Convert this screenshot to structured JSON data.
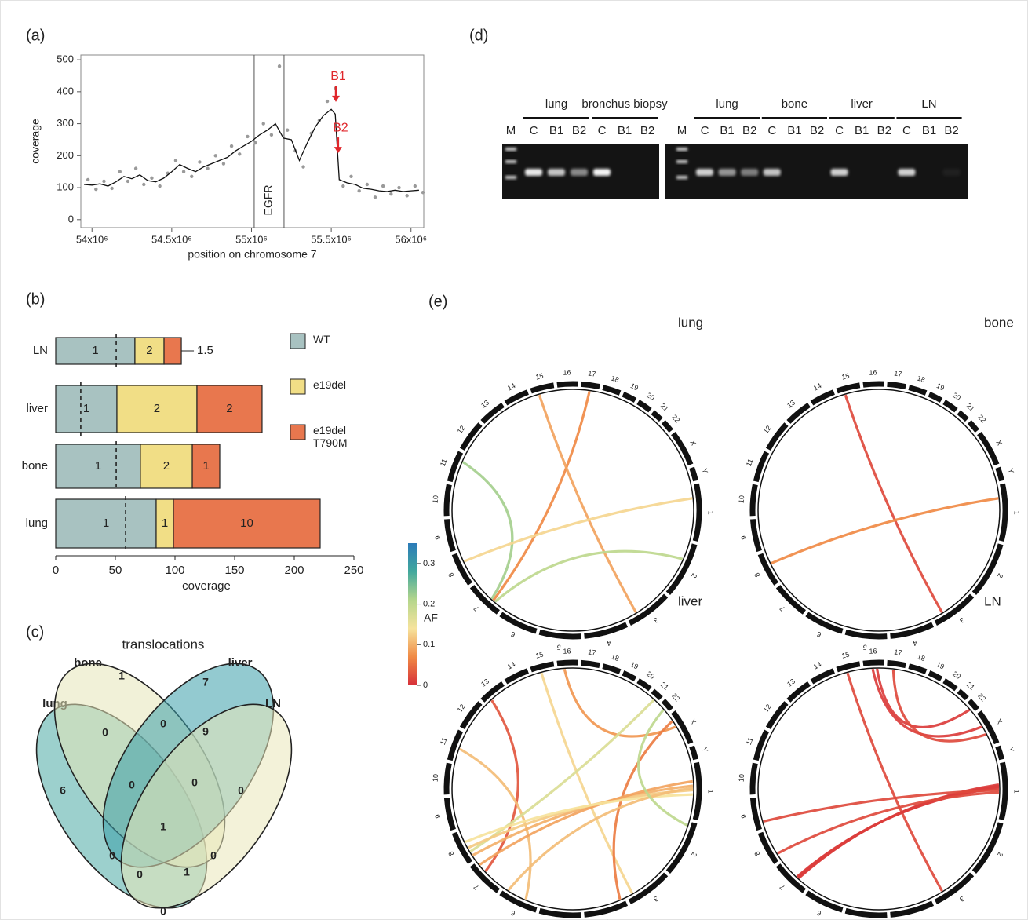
{
  "chart_data": [
    {
      "type": "line",
      "label": "(a)",
      "xlabel": "position on chromosome 7",
      "ylabel": "coverage",
      "xlim": [
        53930000,
        56080000
      ],
      "ylim": [
        -25,
        515
      ],
      "xticks": [
        {
          "value": 54000000,
          "label": "54x10⁶"
        },
        {
          "value": 54500000,
          "label": "54.5x10⁶"
        },
        {
          "value": 55000000,
          "label": "55x10⁶"
        },
        {
          "value": 55500000,
          "label": "55.5x10⁶"
        },
        {
          "value": 56000000,
          "label": "56x10⁶"
        }
      ],
      "yticks": [
        0,
        100,
        200,
        300,
        400,
        500
      ],
      "vlines": [
        55017000,
        55204000
      ],
      "region_label": "EGFR",
      "breakpoints": [
        {
          "label": "B1",
          "x": 55529000,
          "y": 368
        },
        {
          "label": "B2",
          "x": 55543000,
          "y": 208
        }
      ],
      "breakpoint_color": "#e0262b",
      "series": [
        {
          "mode": "markers",
          "color": "#9a9a9a",
          "x": [
            53975000,
            54025000,
            54075000,
            54125000,
            54175000,
            54225000,
            54275000,
            54325000,
            54375000,
            54425000,
            54475000,
            54525000,
            54575000,
            54625000,
            54675000,
            54725000,
            54775000,
            54825000,
            54875000,
            54925000,
            54975000,
            55025000,
            55075000,
            55125000,
            55175000,
            55225000,
            55275000,
            55325000,
            55375000,
            55425000,
            55475000,
            55525000,
            55575000,
            55625000,
            55675000,
            55725000,
            55775000,
            55825000,
            55875000,
            55925000,
            55975000,
            56025000,
            56075000
          ],
          "values": [
            125,
            95,
            120,
            98,
            150,
            120,
            160,
            110,
            130,
            105,
            145,
            185,
            150,
            135,
            180,
            160,
            200,
            175,
            230,
            205,
            260,
            240,
            300,
            265,
            480,
            280,
            215,
            165,
            270,
            310,
            370,
            410,
            105,
            135,
            90,
            110,
            70,
            105,
            80,
            100,
            75,
            105,
            85
          ]
        },
        {
          "mode": "line",
          "color": "#111111",
          "x": [
            53950000,
            54000000,
            54050000,
            54100000,
            54150000,
            54200000,
            54250000,
            54300000,
            54350000,
            54400000,
            54450000,
            54500000,
            54550000,
            54600000,
            54650000,
            54700000,
            54750000,
            54800000,
            54850000,
            54900000,
            54950000,
            55000000,
            55050000,
            55100000,
            55150000,
            55200000,
            55250000,
            55300000,
            55350000,
            55400000,
            55450000,
            55500000,
            55525000,
            55550000,
            55600000,
            55650000,
            55700000,
            55750000,
            55800000,
            55850000,
            55900000,
            55950000,
            56000000,
            56050000
          ],
          "values": [
            110,
            108,
            112,
            105,
            118,
            135,
            128,
            140,
            122,
            118,
            130,
            150,
            172,
            160,
            150,
            165,
            175,
            185,
            195,
            215,
            230,
            245,
            265,
            280,
            300,
            255,
            250,
            185,
            240,
            290,
            325,
            345,
            330,
            125,
            115,
            110,
            98,
            95,
            90,
            88,
            92,
            88,
            90,
            92
          ]
        }
      ]
    },
    {
      "type": "bar",
      "orientation": "horizontal",
      "stacked": true,
      "label": "(b)",
      "xlabel": "coverage",
      "categories": [
        "LN",
        "liver",
        "bone",
        "lung"
      ],
      "series": [
        {
          "name": "WT",
          "color": "#a8c2c1",
          "values": [
            66.4,
            51.3,
            71,
            84.2
          ],
          "ratios": [
            1,
            1,
            1,
            1
          ]
        },
        {
          "name": "e19del",
          "color": "#f1de86",
          "values": [
            24.4,
            67.1,
            43.5,
            14.5
          ],
          "ratios": [
            2,
            2,
            2,
            1
          ]
        },
        {
          "name": "e19del T790M",
          "color": "#e8774e",
          "values": [
            14.5,
            54.6,
            23,
            123
          ],
          "ratios": [
            1.5,
            2,
            1,
            10
          ]
        }
      ],
      "markers": [
        50.7,
        21,
        50.7,
        58.6
      ],
      "xlim": [
        0,
        250
      ],
      "xticks": [
        0,
        50,
        100,
        150,
        200,
        250
      ]
    },
    {
      "type": "venn",
      "label": "(c)",
      "title": "translocations",
      "sets": [
        {
          "name": "lung",
          "color": "#4aa9a4"
        },
        {
          "name": "bone",
          "color": "#e6e6b8"
        },
        {
          "name": "liver",
          "color": "#3b9eaa"
        },
        {
          "name": "LN",
          "color": "#eae8b9"
        }
      ],
      "values": [
        1,
        7,
        0,
        0,
        9,
        6,
        0,
        0,
        0,
        1,
        0,
        0,
        0,
        1,
        0
      ]
    },
    {
      "type": "gel",
      "label": "(d)",
      "gels": [
        {
          "marker": "M",
          "groups": [
            {
              "name": "lung",
              "lanes": [
                "C",
                "B1",
                "B2"
              ],
              "bands": [
                0.9,
                0.75,
                0.5
              ]
            },
            {
              "name": "bronchus biopsy",
              "lanes": [
                "C",
                "B1",
                "B2"
              ],
              "bands": [
                0.95,
                0,
                0
              ]
            }
          ]
        },
        {
          "marker": "M",
          "groups": [
            {
              "name": "lung",
              "lanes": [
                "C",
                "B1",
                "B2"
              ],
              "bands": [
                0.8,
                0.55,
                0.45
              ]
            },
            {
              "name": "bone",
              "lanes": [
                "C",
                "B1",
                "B2"
              ],
              "bands": [
                0.75,
                0,
                0
              ]
            },
            {
              "name": "liver",
              "lanes": [
                "C",
                "B1",
                "B2"
              ],
              "bands": [
                0.8,
                0,
                0
              ]
            },
            {
              "name": "LN",
              "lanes": [
                "C",
                "B1",
                "B2"
              ],
              "bands": [
                0.8,
                0,
                0.05
              ]
            }
          ]
        }
      ]
    },
    {
      "type": "chord",
      "label": "(e)",
      "chromosomes": {
        "names": [
          "1",
          "2",
          "3",
          "4",
          "5",
          "6",
          "7",
          "8",
          "9",
          "10",
          "11",
          "12",
          "13",
          "14",
          "15",
          "16",
          "17",
          "18",
          "19",
          "20",
          "21",
          "22",
          "X",
          "Y"
        ],
        "lengths": [
          249,
          243,
          198,
          191,
          181,
          171,
          159,
          146,
          141,
          136,
          135,
          134,
          115,
          107,
          102,
          90,
          81,
          78,
          59,
          63,
          48,
          51,
          155,
          59
        ]
      },
      "colorbar": {
        "label": "AF",
        "lim": [
          0,
          0.35
        ],
        "ticks": [
          0,
          0.1,
          0.2,
          0.3
        ],
        "colormap": [
          "#d7303a",
          "#f08a45",
          "#f6e39c",
          "#b5d68c",
          "#42a89d",
          "#2b7bb9"
        ]
      },
      "plots": [
        {
          "title": "lung",
          "links": [
            {
              "chr1": "11",
              "pos1": 100,
              "chr2": "7",
              "pos2": 60,
              "af": 0.22
            },
            {
              "chr1": "7",
              "pos1": 50,
              "chr2": "17",
              "pos2": 40,
              "af": 0.07
            },
            {
              "chr1": "15",
              "pos1": 30,
              "chr2": "3",
              "pos2": 150,
              "af": 0.09
            },
            {
              "chr1": "8",
              "pos1": 100,
              "chr2": "1",
              "pos2": 60,
              "af": 0.13
            },
            {
              "chr1": "7",
              "pos1": 40,
              "chr2": "2",
              "pos2": 80,
              "af": 0.2
            }
          ]
        },
        {
          "title": "bone",
          "links": [
            {
              "chr1": "15",
              "pos1": 30,
              "chr2": "3",
              "pos2": 150,
              "af": 0.02
            },
            {
              "chr1": "8",
              "pos1": 90,
              "chr2": "1",
              "pos2": 60,
              "af": 0.07
            }
          ]
        },
        {
          "title": "liver",
          "links": [
            {
              "chr1": "13",
              "pos1": 30,
              "chr2": "7",
              "pos2": 100,
              "af": 0.03
            },
            {
              "chr1": "11",
              "pos1": 60,
              "chr2": "6",
              "pos2": 60,
              "af": 0.11
            },
            {
              "chr1": "15",
              "pos1": 40,
              "chr2": "3",
              "pos2": 170,
              "af": 0.13
            },
            {
              "chr1": "16",
              "pos1": 30,
              "chr2": "X",
              "pos2": 60,
              "af": 0.08
            },
            {
              "chr1": "21",
              "pos1": 30,
              "chr2": "8",
              "pos2": 40,
              "af": 0.17
            },
            {
              "chr1": "X",
              "pos1": 30,
              "chr2": "4",
              "pos2": 20,
              "af": 0.06
            },
            {
              "chr1": "8",
              "pos1": 20,
              "chr2": "1",
              "pos2": 100,
              "af": 0.1
            },
            {
              "chr1": "8",
              "pos1": 60,
              "chr2": "1",
              "pos2": 120,
              "af": 0.12
            },
            {
              "chr1": "7",
              "pos1": 140,
              "chr2": "1",
              "pos2": 80,
              "af": 0.09
            },
            {
              "chr1": "8",
              "pos1": 90,
              "chr2": "1",
              "pos2": 140,
              "af": 0.14
            },
            {
              "chr1": "6",
              "pos1": 150,
              "chr2": "1",
              "pos2": 110,
              "af": 0.11
            },
            {
              "chr1": "22",
              "pos1": 30,
              "chr2": "2",
              "pos2": 20,
              "af": 0.2
            }
          ]
        },
        {
          "title": "LN",
          "links": [
            {
              "chr1": "15",
              "pos1": 40,
              "chr2": "3",
              "pos2": 150,
              "af": 0.02
            },
            {
              "chr1": "16",
              "pos1": 40,
              "chr2": "X",
              "pos2": 60,
              "af": 0.01
            },
            {
              "chr1": "16",
              "pos1": 60,
              "chr2": "22",
              "pos2": 30,
              "af": 0.01
            },
            {
              "chr1": "17",
              "pos1": 30,
              "chr2": "X",
              "pos2": 100,
              "af": 0.02
            },
            {
              "chr1": "7",
              "pos1": 55,
              "chr2": "1",
              "pos2": 95,
              "af": 0.01
            },
            {
              "chr1": "7",
              "pos1": 58,
              "chr2": "1",
              "pos2": 100,
              "af": 0.01
            },
            {
              "chr1": "7",
              "pos1": 62,
              "chr2": "1",
              "pos2": 105,
              "af": 0.01
            },
            {
              "chr1": "7",
              "pos1": 65,
              "chr2": "1",
              "pos2": 110,
              "af": 0.01
            },
            {
              "chr1": "9",
              "pos1": 30,
              "chr2": "1",
              "pos2": 120,
              "af": 0.02
            },
            {
              "chr1": "8",
              "pos1": 30,
              "chr2": "1",
              "pos2": 130,
              "af": 0.02
            }
          ]
        }
      ]
    }
  ]
}
